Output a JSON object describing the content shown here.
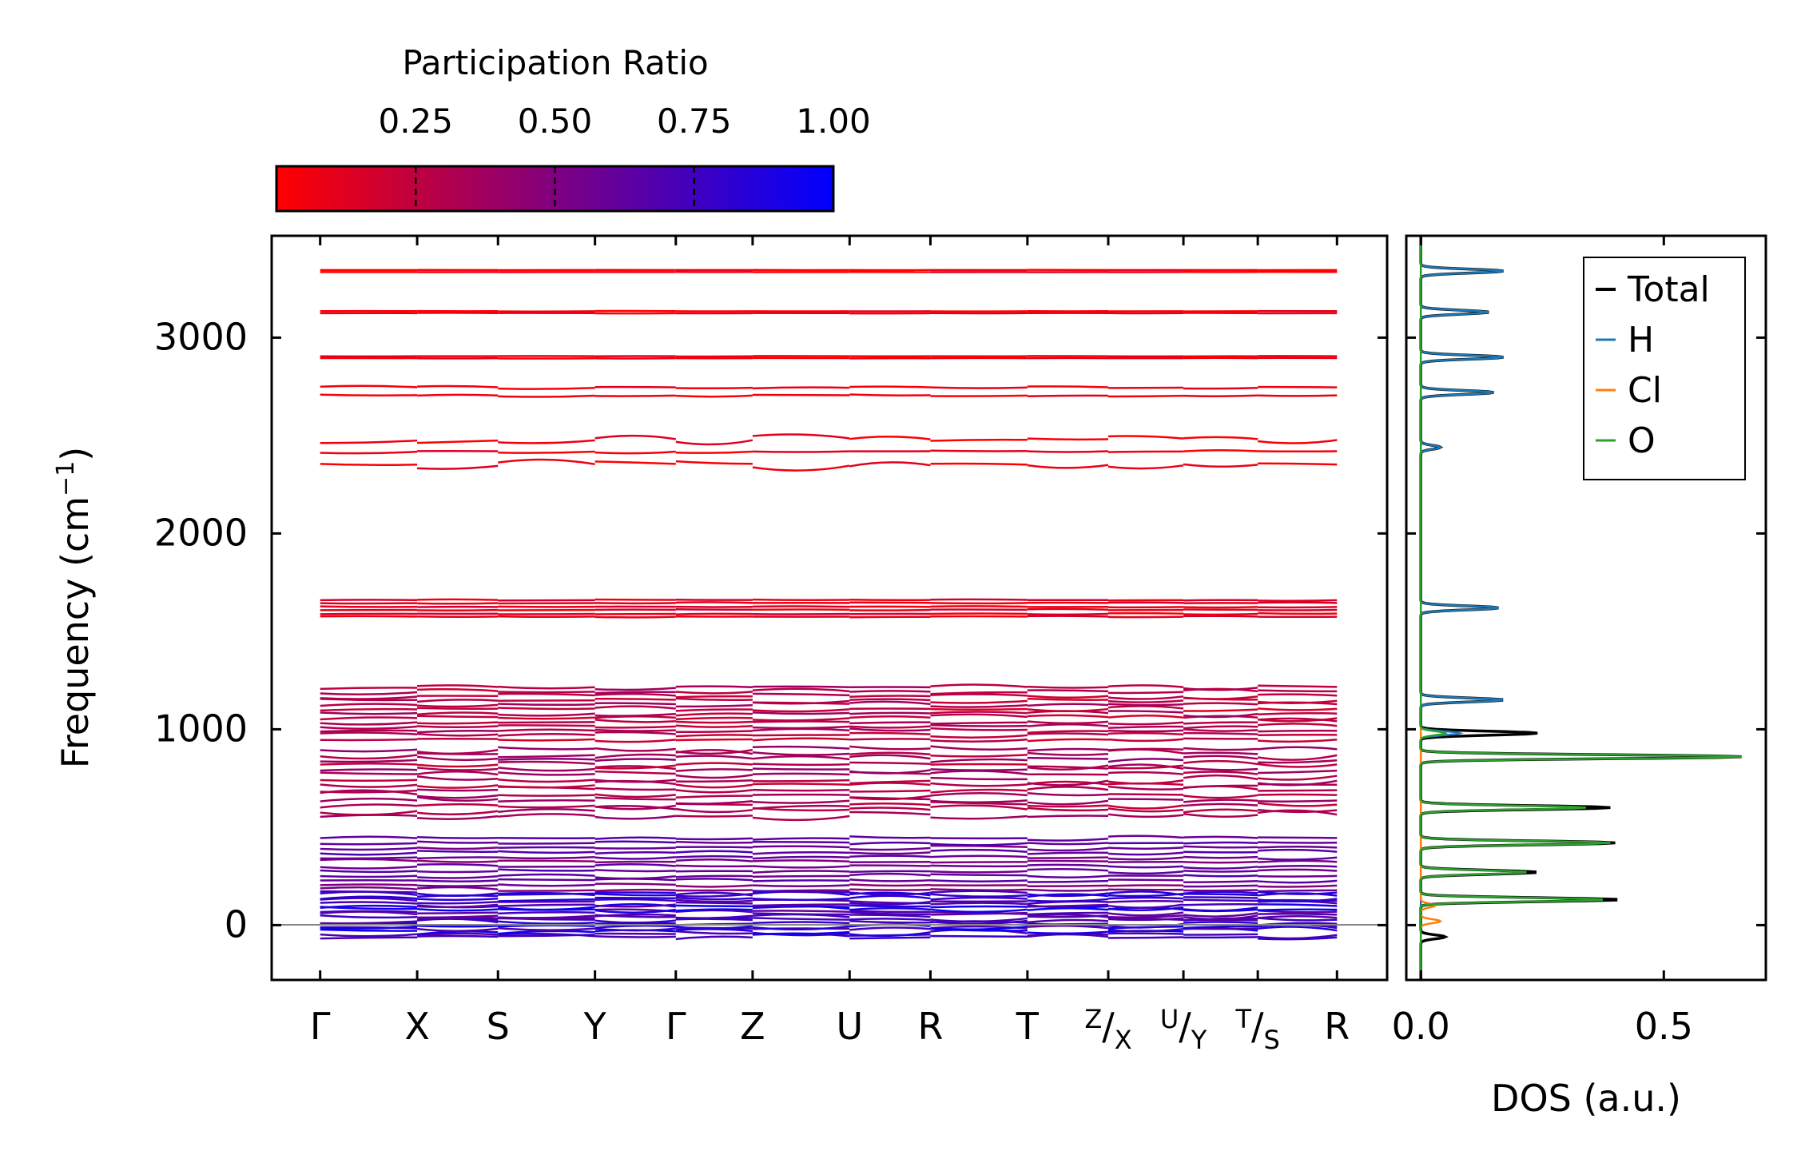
{
  "chart_data": [
    {
      "type": "line",
      "title": "",
      "xlabel": "",
      "ylabel": "Frequency (cm⁻¹)",
      "ylim": [
        -280,
        3520
      ],
      "yticks": [
        0,
        1000,
        2000,
        3000
      ],
      "ytick_labels": [
        "0",
        "1000",
        "2000",
        "3000"
      ],
      "grid": false,
      "kpath_labels": [
        "Γ",
        "X",
        "S",
        "Y",
        "Γ",
        "Z",
        "U",
        "R",
        "T",
        "Z|X",
        "U|Y",
        "T|S",
        "R"
      ],
      "kpath_positions": [
        0,
        1.2,
        2.2,
        3.4,
        4.4,
        5.35,
        6.55,
        7.55,
        8.75,
        9.75,
        10.68,
        11.6,
        12.58
      ],
      "colorbar": {
        "label": "Participation Ratio",
        "range": [
          0.0,
          1.0
        ],
        "ticks": [
          0.25,
          0.5,
          0.75,
          1.0
        ],
        "tick_labels": [
          "0.25",
          "0.50",
          "0.75",
          "1.00"
        ],
        "colors": [
          "#ff0000",
          "#0000ff"
        ]
      },
      "bands_description": "Phonon bands grouped near: 3340, 3130, 2900, 2720, 2350-2490, 1580-1660, 1000-1220, 560-900, 0-460 cm-1, with small imaginary (negative) modes down to about -80 cm-1.",
      "band_groups": [
        {
          "center": 3340,
          "pr": 0.05
        },
        {
          "center": 3130,
          "pr": 0.05
        },
        {
          "center": 2900,
          "pr": 0.05
        },
        {
          "center": 2720,
          "pr": 0.06
        },
        {
          "center": 2420,
          "pr": 0.06
        },
        {
          "center": 1620,
          "pr": 0.12
        },
        {
          "center": 1100,
          "pr": 0.25
        },
        {
          "center": 700,
          "pr": 0.3
        },
        {
          "center": 250,
          "pr": 0.6
        },
        {
          "center": 50,
          "pr": 0.85
        }
      ]
    },
    {
      "type": "line",
      "title": "",
      "xlabel": "DOS (a.u.)",
      "ylabel": "",
      "xlim": [
        -0.03,
        0.71
      ],
      "xticks": [
        0.0,
        0.5
      ],
      "xtick_labels": [
        "0.0",
        "0.5"
      ],
      "ylim": [
        -280,
        3520
      ],
      "legend_location": "top-right",
      "series": [
        {
          "name": "Total",
          "color": "#000000",
          "peaks": [
            [
              -60,
              0.05
            ],
            [
              130,
              0.41
            ],
            [
              270,
              0.24
            ],
            [
              420,
              0.4
            ],
            [
              600,
              0.39
            ],
            [
              860,
              0.66
            ],
            [
              980,
              0.24
            ],
            [
              1150,
              0.17
            ],
            [
              1620,
              0.16
            ],
            [
              2440,
              0.04
            ],
            [
              2720,
              0.15
            ],
            [
              2900,
              0.17
            ],
            [
              3130,
              0.14
            ],
            [
              3340,
              0.17
            ]
          ]
        },
        {
          "name": "H",
          "color": "#1f77b4",
          "peaks": [
            [
              980,
              0.08
            ],
            [
              1150,
              0.17
            ],
            [
              1620,
              0.16
            ],
            [
              2440,
              0.04
            ],
            [
              2720,
              0.15
            ],
            [
              2900,
              0.17
            ],
            [
              3130,
              0.14
            ],
            [
              3340,
              0.17
            ]
          ]
        },
        {
          "name": "Cl",
          "color": "#ff7f0e",
          "peaks": [
            [
              20,
              0.04
            ],
            [
              100,
              0.03
            ]
          ]
        },
        {
          "name": "O",
          "color": "#2ca02c",
          "peaks": [
            [
              130,
              0.38
            ],
            [
              270,
              0.22
            ],
            [
              420,
              0.39
            ],
            [
              600,
              0.34
            ],
            [
              860,
              0.66
            ],
            [
              980,
              0.05
            ]
          ]
        }
      ]
    }
  ]
}
